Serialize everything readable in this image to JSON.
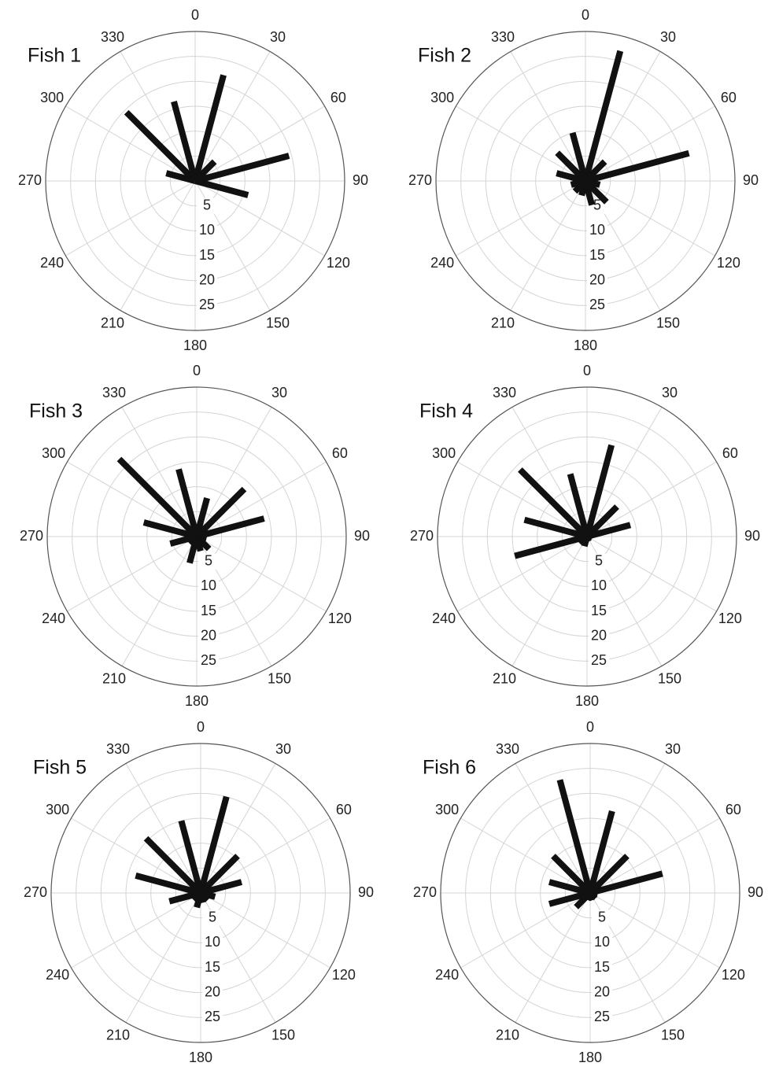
{
  "chart_data": [
    {
      "type": "polar-bar",
      "title": "Fish 1",
      "color": "#111111",
      "grid": true,
      "x": [
        15,
        45,
        75,
        105,
        135,
        165,
        195,
        225,
        255,
        285,
        315,
        345
      ],
      "values": [
        22,
        5.5,
        19.5,
        11,
        0,
        0,
        0,
        0,
        0,
        6,
        19.5,
        16.5
      ],
      "xlim": [
        0,
        360
      ],
      "xticks": [
        0,
        30,
        60,
        90,
        120,
        150,
        180,
        210,
        240,
        270,
        300,
        330
      ],
      "rlim": [
        0,
        30
      ],
      "rticks": [
        5,
        10,
        15,
        20,
        25
      ]
    },
    {
      "type": "polar-bar",
      "title": "Fish 2",
      "color": "#111111",
      "grid": true,
      "x": [
        15,
        45,
        75,
        105,
        135,
        165,
        195,
        225,
        255,
        285,
        315,
        345
      ],
      "values": [
        27,
        5.5,
        21.5,
        3,
        6,
        5,
        3,
        3,
        3,
        6,
        8,
        10
      ],
      "xlim": [
        0,
        360
      ],
      "xticks": [
        0,
        30,
        60,
        90,
        120,
        150,
        180,
        210,
        240,
        270,
        300,
        330
      ],
      "rlim": [
        0,
        30
      ],
      "rticks": [
        5,
        10,
        15,
        20,
        25
      ]
    },
    {
      "type": "polar-bar",
      "title": "Fish 3",
      "color": "#111111",
      "grid": true,
      "x": [
        15,
        45,
        75,
        105,
        135,
        165,
        195,
        225,
        255,
        285,
        315,
        345
      ],
      "values": [
        8,
        13.5,
        14,
        2,
        3.5,
        3,
        5.5,
        2,
        5.5,
        11,
        22,
        14
      ],
      "xlim": [
        0,
        360
      ],
      "xticks": [
        0,
        30,
        60,
        90,
        120,
        150,
        180,
        210,
        240,
        270,
        300,
        330
      ],
      "rlim": [
        0,
        30
      ],
      "rticks": [
        5,
        10,
        15,
        20,
        25
      ]
    },
    {
      "type": "polar-bar",
      "title": "Fish 4",
      "color": "#111111",
      "grid": true,
      "x": [
        15,
        45,
        75,
        105,
        135,
        165,
        195,
        225,
        255,
        285,
        315,
        345
      ],
      "values": [
        19,
        8.5,
        9,
        1,
        1,
        1,
        2,
        2,
        15,
        13,
        19,
        13
      ],
      "xlim": [
        0,
        360
      ],
      "xticks": [
        0,
        30,
        60,
        90,
        120,
        150,
        180,
        210,
        240,
        270,
        300,
        330
      ],
      "rlim": [
        0,
        30
      ],
      "rticks": [
        5,
        10,
        15,
        20,
        25
      ]
    },
    {
      "type": "polar-bar",
      "title": "Fish 5",
      "color": "#111111",
      "grid": true,
      "x": [
        15,
        45,
        75,
        105,
        135,
        165,
        195,
        225,
        255,
        285,
        315,
        345
      ],
      "values": [
        20,
        10.5,
        8.5,
        3,
        2,
        2,
        3,
        2,
        6.5,
        13.5,
        15.5,
        15
      ],
      "xlim": [
        0,
        360
      ],
      "xticks": [
        0,
        30,
        60,
        90,
        120,
        150,
        180,
        210,
        240,
        270,
        300,
        330
      ],
      "rlim": [
        0,
        30
      ],
      "rticks": [
        5,
        10,
        15,
        20,
        25
      ]
    },
    {
      "type": "polar-bar",
      "title": "Fish 6",
      "color": "#111111",
      "grid": true,
      "x": [
        15,
        45,
        75,
        105,
        135,
        165,
        195,
        225,
        255,
        285,
        315,
        345
      ],
      "values": [
        17,
        10.5,
        15,
        1.5,
        1.5,
        1.5,
        1.5,
        4,
        8.5,
        8.5,
        10.5,
        23.5
      ],
      "xlim": [
        0,
        360
      ],
      "xticks": [
        0,
        30,
        60,
        90,
        120,
        150,
        180,
        210,
        240,
        270,
        300,
        330
      ],
      "rlim": [
        0,
        30
      ],
      "rticks": [
        5,
        10,
        15,
        20,
        25
      ]
    }
  ]
}
